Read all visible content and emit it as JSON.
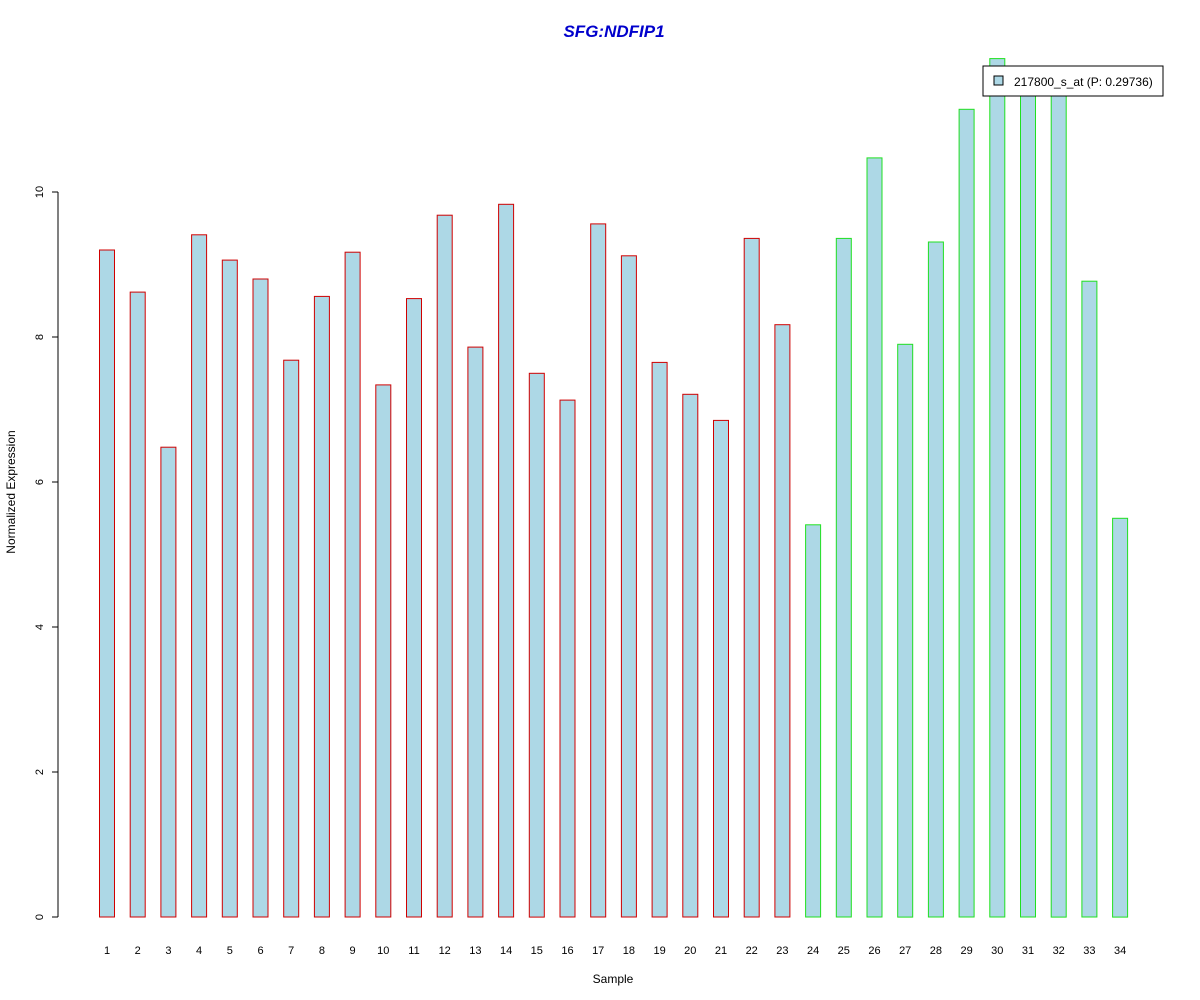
{
  "chart_data": {
    "type": "bar",
    "title": "SFG:NDFIP1",
    "xlabel": "Sample",
    "ylabel": "Normalized Expression",
    "categories": [
      "1",
      "2",
      "3",
      "4",
      "5",
      "6",
      "7",
      "8",
      "9",
      "10",
      "11",
      "12",
      "13",
      "14",
      "15",
      "16",
      "17",
      "18",
      "19",
      "20",
      "21",
      "22",
      "23",
      "24",
      "25",
      "26",
      "27",
      "28",
      "29",
      "30",
      "31",
      "32",
      "33",
      "34"
    ],
    "series": [
      {
        "name": "217800_s_at (P: 0.29736)",
        "values": [
          9.2,
          8.62,
          6.48,
          9.41,
          9.06,
          8.8,
          7.68,
          8.56,
          9.17,
          7.34,
          8.53,
          9.68,
          7.86,
          9.83,
          7.5,
          7.13,
          9.56,
          9.12,
          7.65,
          7.21,
          6.85,
          9.36,
          8.17,
          5.41,
          9.36,
          10.47,
          7.9,
          9.31,
          11.14,
          11.84,
          11.6,
          11.7,
          8.77,
          5.5
        ]
      }
    ],
    "group_border_colors": [
      "#d00000",
      "#d00000",
      "#d00000",
      "#d00000",
      "#d00000",
      "#d00000",
      "#d00000",
      "#d00000",
      "#d00000",
      "#d00000",
      "#d00000",
      "#d00000",
      "#d00000",
      "#d00000",
      "#d00000",
      "#d00000",
      "#d00000",
      "#d00000",
      "#d00000",
      "#d00000",
      "#d00000",
      "#d00000",
      "#d00000",
      "#20e020",
      "#20e020",
      "#20e020",
      "#20e020",
      "#20e020",
      "#20e020",
      "#20e020",
      "#20e020",
      "#20e020",
      "#20e020",
      "#20e020"
    ],
    "bar_fill": "#add8e6",
    "title_color": "#0000cc",
    "yticks": [
      0,
      2,
      4,
      6,
      8,
      10
    ],
    "ylim": [
      0,
      12
    ],
    "legend_position": "top-right",
    "grid": false
  }
}
